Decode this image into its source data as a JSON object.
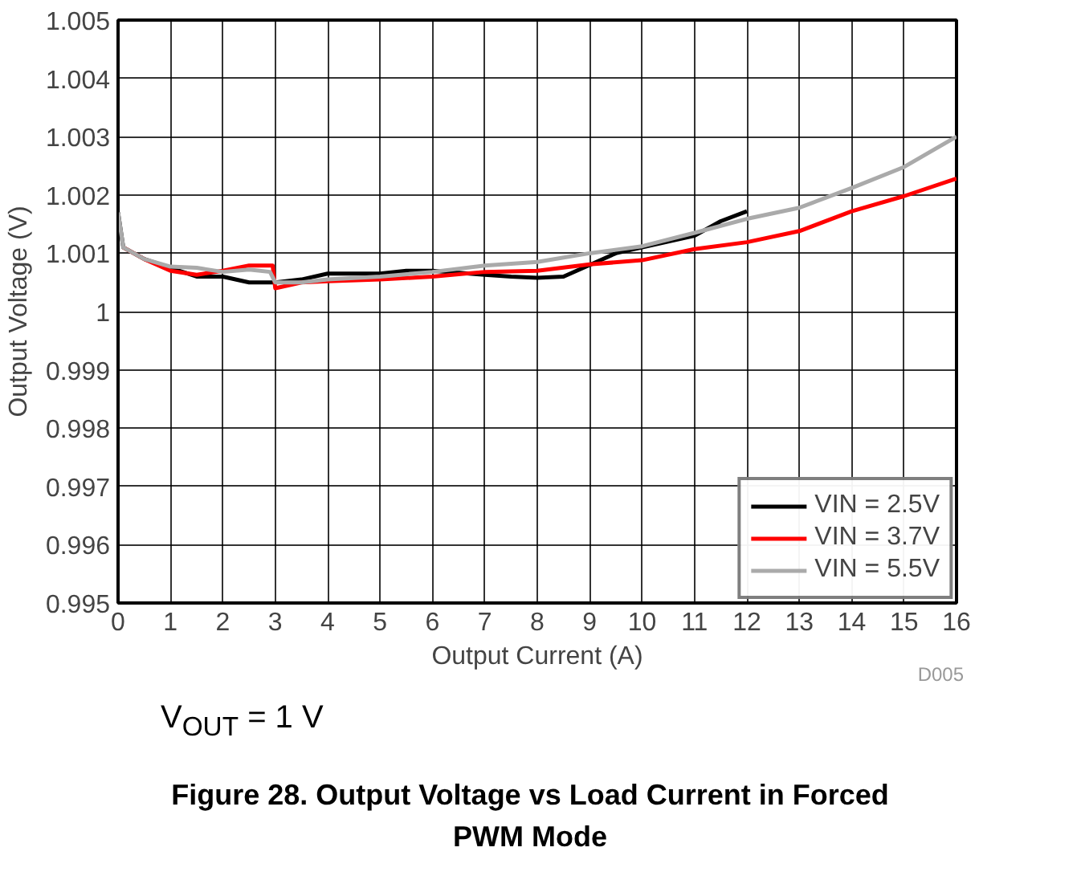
{
  "chart_data": {
    "type": "line",
    "title": "Figure 28. Output Voltage vs Load Current in Forced PWM Mode",
    "xlabel": "Output Current (A)",
    "ylabel": "Output Voltage (V)",
    "xlim": [
      0,
      16
    ],
    "xticks": [
      0,
      1,
      2,
      3,
      4,
      5,
      6,
      7,
      8,
      9,
      10,
      11,
      12,
      13,
      14,
      15,
      16
    ],
    "ylim": [
      0.995,
      1.005
    ],
    "yticks": [
      0.995,
      0.996,
      0.997,
      0.998,
      0.999,
      1,
      1.001,
      1.002,
      1.003,
      1.004,
      1.005
    ],
    "grid": true,
    "legend": "bottom right",
    "line_style": "solid",
    "marker": "none",
    "annotations": [
      "D005",
      "V$_{OUT}$ = 1 V"
    ],
    "series": [
      {
        "name": "VIN = 2.5V",
        "color": "#000000",
        "x": [
          0,
          0.1,
          0.5,
          1,
          1.5,
          2,
          2.5,
          3,
          3.5,
          4,
          5,
          5.5,
          6,
          7,
          7.5,
          8,
          8.5,
          9,
          9.5,
          10,
          10.5,
          11,
          11.5,
          12
        ],
        "values": [
          1.0017,
          1.0011,
          1.0009,
          1.00075,
          1.0006,
          1.0006,
          1.0005,
          1.0005,
          1.00055,
          1.00065,
          1.00065,
          1.0007,
          1.0007,
          1.00063,
          1.0006,
          1.00058,
          1.0006,
          1.0008,
          1.001,
          1.0011,
          1.0012,
          1.0013,
          1.00155,
          1.00172
        ]
      },
      {
        "name": "VIN = 3.7V",
        "color": "#ff0000",
        "x": [
          0.1,
          0.5,
          1,
          1.5,
          2,
          2.5,
          2.95,
          3,
          3.5,
          4,
          5,
          6,
          7,
          8,
          9,
          10,
          11,
          12,
          13,
          14,
          15,
          16
        ],
        "values": [
          1.0011,
          1.0009,
          1.0007,
          1.00063,
          1.0007,
          1.00079,
          1.00079,
          1.0004,
          1.0005,
          1.00052,
          1.00055,
          1.0006,
          1.00068,
          1.0007,
          1.00081,
          1.00088,
          1.00107,
          1.00119,
          1.00138,
          1.00172,
          1.00198,
          1.00228
        ]
      },
      {
        "name": "VIN = 5.5V",
        "color": "#aaaaaa",
        "x": [
          0,
          0.1,
          0.5,
          1,
          1.5,
          2,
          2.5,
          2.9,
          3,
          3.5,
          4,
          5,
          6,
          7,
          8,
          9,
          10,
          11,
          12,
          13,
          14,
          15,
          16
        ],
        "values": [
          1.0017,
          1.0011,
          1.0009,
          1.00077,
          1.00075,
          1.00068,
          1.00072,
          1.00068,
          1.0005,
          1.0005,
          1.00055,
          1.0006,
          1.00068,
          1.00079,
          1.00085,
          1.001,
          1.00112,
          1.00135,
          1.00159,
          1.00178,
          1.00212,
          1.00248,
          1.003
        ]
      }
    ]
  }
}
